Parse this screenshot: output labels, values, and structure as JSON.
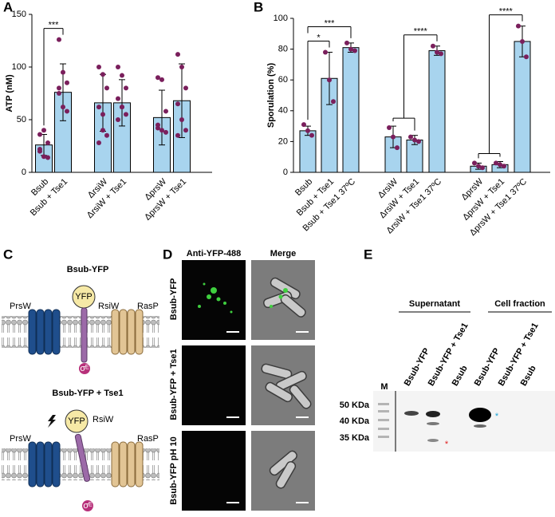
{
  "chart_data": [
    {
      "type": "bar",
      "ylabel": "ATP (nM)",
      "categories": [
        "Bsub",
        "Bsub + Tse1",
        "ΔrsiW",
        "ΔrsiW + Tse1",
        "ΔprsW",
        "ΔprsW + Tse1"
      ],
      "values": [
        26,
        76,
        66,
        66,
        52,
        68
      ],
      "errors": [
        10,
        27,
        27,
        22,
        26,
        35
      ],
      "points": [
        [
          36,
          40,
          28,
          20,
          15,
          14,
          22
        ],
        [
          126,
          95,
          85,
          80,
          62,
          58,
          75
        ],
        [
          100,
          93,
          80,
          62,
          55,
          35,
          28,
          40
        ],
        [
          100,
          92,
          80,
          70,
          62,
          55,
          50,
          62
        ],
        [
          90,
          88,
          58,
          42,
          40,
          38,
          45
        ],
        [
          112,
          100,
          80,
          65,
          50,
          40,
          35
        ]
      ],
      "color": "#a8d4ee",
      "point_color": "#7a1f5c",
      "ylim": [
        0,
        150
      ],
      "yticks": [
        0,
        50,
        100,
        150
      ],
      "significance": [
        {
          "from": [
            0
          ],
          "to": 1,
          "label": "***"
        }
      ]
    },
    {
      "type": "bar",
      "ylabel": "Sporulation (%)",
      "categories": [
        "Bsub",
        "Bsub + Tse1",
        "Bsub + Tse1 37ºC",
        "ΔrsiW",
        "ΔrsiW + Tse1",
        "ΔrsiW + Tse1 37ºC",
        "ΔprsW",
        "ΔprsW + Tse1",
        "ΔprsW + Tse1 37ºC"
      ],
      "values": [
        27,
        61,
        81,
        23,
        21,
        79,
        4,
        5,
        85
      ],
      "errors": [
        3,
        17,
        3,
        7,
        3,
        3,
        2,
        2,
        10
      ],
      "points": [
        [
          31,
          27,
          24
        ],
        [
          78,
          60,
          46
        ],
        [
          84,
          80,
          79
        ],
        [
          29,
          23,
          16
        ],
        [
          23,
          21,
          20
        ],
        [
          82,
          78,
          77
        ],
        [
          6,
          4,
          3
        ],
        [
          6,
          5,
          4
        ],
        [
          95,
          85,
          75
        ]
      ],
      "color": "#a8d4ee",
      "point_color": "#7a1f5c",
      "ylim": [
        0,
        100
      ],
      "yticks": [
        0,
        20,
        40,
        60,
        80,
        100
      ],
      "significance": [
        {
          "from": [
            0
          ],
          "to": 1,
          "label": "*"
        },
        {
          "from": [
            0
          ],
          "to": 2,
          "label": "***"
        },
        {
          "from": [
            3,
            4
          ],
          "to": 5,
          "label": "****"
        },
        {
          "from": [
            6,
            7
          ],
          "to": 8,
          "label": "****"
        }
      ]
    }
  ],
  "panel_labels": [
    "A",
    "B",
    "C",
    "D",
    "E"
  ],
  "diagram": {
    "top": {
      "title": "Bsub-YFP",
      "yfp": "YFP",
      "rsiw": "RsiW",
      "prsw": "PrsW",
      "rasp": "RasP",
      "sigma": "σᴱ"
    },
    "bottom": {
      "title": "Bsub-YFP + Tse1",
      "yfp": "YFP",
      "rsiw": "RsiW",
      "prsw": "PrsW",
      "rasp": "RasP",
      "sigma": "σᴱ"
    }
  },
  "micrographs": {
    "columns": [
      "Anti-YFP-488",
      "Merge"
    ],
    "rows": [
      "Bsub-YFP",
      "Bsub-YFP + Tse1",
      "Bsub-YFP pH 10"
    ]
  },
  "blot": {
    "groups": [
      "Supernatant",
      "Cell fraction"
    ],
    "lanes": [
      "M",
      "Bsub-YFP",
      "Bsub-YFP + Tse1",
      "Bsub",
      "Bsub-YFP",
      "Bsub-YFP + Tse1",
      "Bsub"
    ],
    "markers": [
      "50 KDa",
      "40 KDa",
      "35 KDa"
    ],
    "asterisks": [
      "*",
      "*"
    ]
  }
}
